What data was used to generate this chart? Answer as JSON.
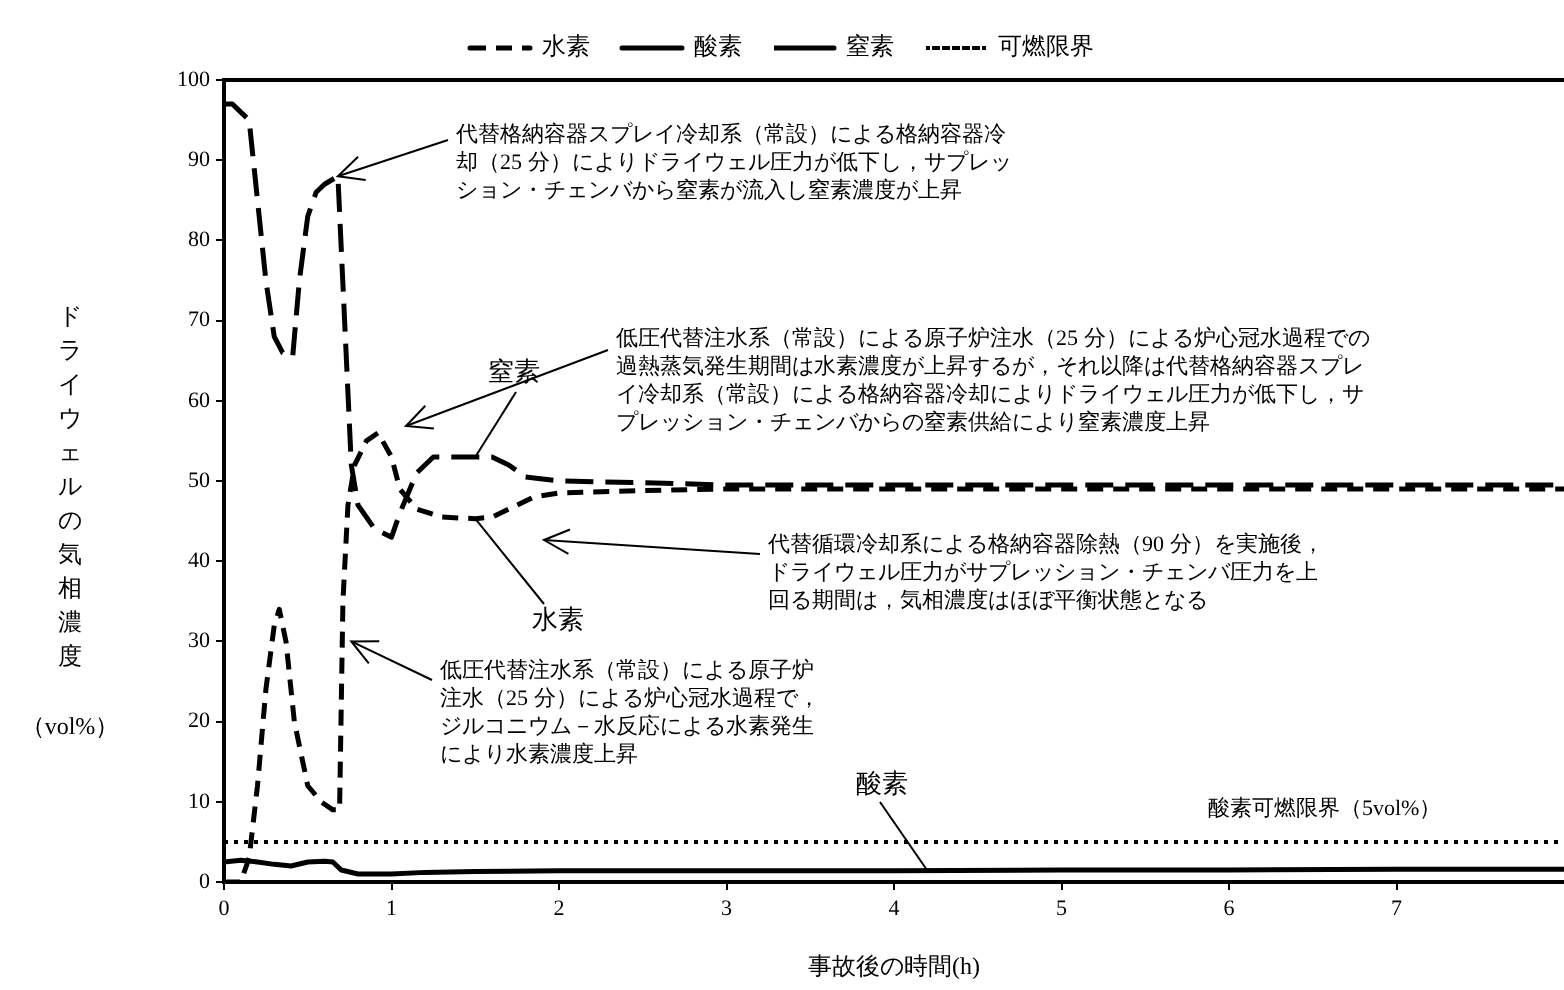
{
  "chart_data": {
    "type": "line",
    "xlabel": "事故後の時間(h)",
    "ylabel": "ドライウェルの気相濃度（vol%）",
    "xlim": [
      0,
      8
    ],
    "xticks": [
      0,
      1,
      2,
      3,
      4,
      5,
      6,
      7
    ],
    "ylim": [
      0,
      100
    ],
    "yticks": [
      0,
      10,
      20,
      30,
      40,
      50,
      60,
      70,
      80,
      90,
      100
    ],
    "grid": false,
    "legend": "top",
    "marker": "none",
    "series": [
      {
        "name": "水素",
        "color": "#000000",
        "line_style": "dashed",
        "x": [
          0,
          0.1,
          0.15,
          0.2,
          0.25,
          0.3,
          0.33,
          0.37,
          0.42,
          0.5,
          0.58,
          0.65,
          0.69,
          0.71,
          0.74,
          0.78,
          0.85,
          0.92,
          1.0,
          1.05,
          1.15,
          1.3,
          1.5,
          1.6,
          1.7,
          1.85,
          2.0,
          2.5,
          3,
          4,
          5,
          6,
          7,
          8
        ],
        "values": [
          0,
          0,
          3,
          12,
          24,
          32,
          34,
          30,
          20,
          12,
          10,
          9,
          9,
          35,
          47,
          52,
          55,
          56,
          53,
          49,
          46.5,
          45.5,
          45.3,
          45.5,
          46.5,
          48,
          48.5,
          48.8,
          49,
          49,
          49,
          49,
          49,
          49
        ]
      },
      {
        "name": "酸素",
        "color": "#000000",
        "line_style": "solid",
        "x": [
          0,
          0.1,
          0.2,
          0.3,
          0.4,
          0.5,
          0.6,
          0.65,
          0.7,
          0.8,
          0.9,
          1.0,
          1.2,
          1.5,
          2,
          3,
          4,
          5,
          6,
          7,
          8
        ],
        "values": [
          2.5,
          2.7,
          2.5,
          2.2,
          2,
          2.5,
          2.6,
          2.5,
          1.5,
          1,
          1,
          1,
          1.2,
          1.3,
          1.4,
          1.4,
          1.4,
          1.5,
          1.5,
          1.6,
          1.6
        ]
      },
      {
        "name": "窒素",
        "color": "#000000",
        "line_style": "dashed",
        "x": [
          0,
          0.05,
          0.1,
          0.15,
          0.2,
          0.25,
          0.3,
          0.35,
          0.41,
          0.45,
          0.5,
          0.55,
          0.6,
          0.68,
          0.72,
          0.76,
          0.8,
          0.9,
          1.0,
          1.05,
          1.15,
          1.25,
          1.5,
          1.6,
          1.7,
          1.8,
          2.0,
          2.5,
          3,
          4,
          5,
          6,
          7,
          8
        ],
        "values": [
          97,
          97,
          96,
          95,
          85,
          75,
          68,
          66,
          65.5,
          75,
          83,
          86,
          87,
          88,
          70,
          52,
          47,
          44,
          43,
          46,
          51,
          53,
          53,
          53,
          52,
          50.5,
          50,
          49.8,
          49.5,
          49.5,
          49.5,
          49.5,
          49.5,
          49.5
        ]
      },
      {
        "name": "可燃限界",
        "color": "#000000",
        "line_style": "dotted",
        "x": [
          0,
          8
        ],
        "values": [
          5,
          5
        ]
      }
    ],
    "annotations": [
      {
        "text": "代替格納容器スプレイ冷却系（常設）による格納容器冷却（25 分）によりドライウェル圧力が低下し，サプレッション・チェンバから窒素が流入し窒素濃度が上昇",
        "x": 0.68,
        "y": 88
      },
      "低圧代替注水系（常設）による原子炉注水（25 分）による炉心冠水過程での過熱蒸気発生期間は水素濃度が上昇するが，それ以降は代替格納容器スプレイ冷却系（常設）による格納容器冷却によりドライウェル圧力が低下し，サプレッション・チェンバからの窒素供給により窒素濃度上昇",
      {
        "text": "窒素",
        "x": 1.5,
        "y": 53
      },
      {
        "text": "水素",
        "x": 1.5,
        "y": 45.3
      },
      "代替循環冷却系による格納容器除熱（90 分）を実施後，ドライウェル圧力がサプレッション・チェンバ圧力を上回る期間は，気相濃度はほぼ平衡状態となる",
      {
        "text": "低圧代替注水系（常設）による原子炉注水（25 分）による炉心冠水過程で，ジルコニウム－水反応による水素発生により水素濃度上昇",
        "x": 0.76,
        "y": 30
      },
      {
        "text": "酸素",
        "x": 4.2,
        "y": 1.4
      },
      {
        "text": "酸素可燃限界（5vol%）",
        "x": 6.6,
        "y": 5
      }
    ]
  }
}
